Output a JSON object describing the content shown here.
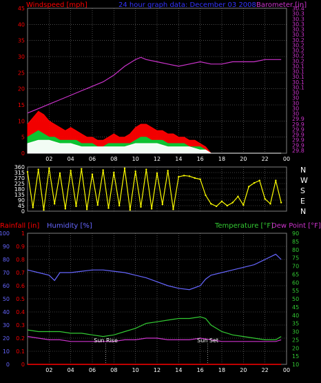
{
  "header": {
    "windspeed_label": "Windspeed [mph]",
    "title": "24 hour graph data: December 03 2008",
    "barometer_label": "Barometer [in]"
  },
  "lower_header": {
    "rainfall_label": "Rainfall [in]",
    "humidity_label": "Humidity [%]",
    "temperature_label": "Temperature [°F]",
    "dewpoint_label": "Dew Point [°F]"
  },
  "annotations": {
    "sunrise": "Sun Rise",
    "sunset": "Sun Set"
  },
  "colors": {
    "background": "#000000",
    "wind_gust": "#ff0000",
    "wind_speed": "#00cc33",
    "wind_avg": "#ffffff",
    "barometer": "#cc33cc",
    "direction": "#ffff00",
    "humidity": "#6666ff",
    "temperature": "#33cc33",
    "dewpoint": "#cc33cc",
    "rainfall": "#ff0000",
    "grid": "#7f7f7f"
  },
  "chart_data": [
    {
      "type": "line",
      "name": "wind-and-barometer",
      "title": "24 hour graph data: December 03 2008",
      "x_ticks": [
        "02",
        "04",
        "06",
        "08",
        "10",
        "12",
        "14",
        "16",
        "18",
        "20",
        "22",
        "00"
      ],
      "left_axis": {
        "label": "Windspeed [mph]",
        "lim": [
          0,
          45
        ],
        "ticks": [
          0,
          5,
          10,
          15,
          20,
          25,
          30,
          35,
          40,
          45
        ]
      },
      "right_axis": {
        "label": "Barometer [in]",
        "lim": [
          29.75,
          30.4
        ],
        "ticks": [
          "29.8",
          "29.9",
          "29.9",
          "29.9",
          "29.9",
          "29.9",
          "29.9",
          "30",
          "30",
          "30",
          "30",
          "30",
          "30.1",
          "30.1",
          "30.1",
          "30.1",
          "30.1",
          "30.2",
          "30.2",
          "30.2",
          "30.2",
          "30.2",
          "30.3",
          "30.3",
          "30.3",
          "30.3",
          "30.3",
          "30.4"
        ]
      },
      "grid": true,
      "series": [
        {
          "name": "Barometer",
          "axis": "right",
          "x": [
            0.0,
            1.0,
            2.0,
            3.0,
            4.0,
            5.0,
            6.0,
            7.0,
            8.0,
            9.0,
            10.0,
            10.5,
            11.0,
            12.0,
            13.0,
            14.0,
            15.0,
            16.0,
            17.0,
            18.0,
            19.0,
            20.0,
            21.0,
            22.0,
            23.0,
            23.5
          ],
          "y": [
            29.93,
            29.95,
            29.97,
            29.99,
            30.01,
            30.03,
            30.05,
            30.07,
            30.1,
            30.14,
            30.17,
            30.18,
            30.17,
            30.16,
            30.15,
            30.14,
            30.15,
            30.16,
            30.15,
            30.15,
            30.16,
            30.16,
            30.16,
            30.17,
            30.17,
            30.17
          ]
        },
        {
          "name": "Gust",
          "axis": "left",
          "x": [
            0.0,
            0.5,
            1.0,
            1.5,
            2.0,
            2.5,
            3.0,
            3.5,
            4.0,
            4.5,
            5.0,
            5.5,
            6.0,
            6.5,
            7.0,
            7.5,
            8.0,
            8.5,
            9.0,
            9.5,
            10.0,
            10.5,
            11.0,
            11.5,
            12.0,
            12.5,
            13.0,
            13.5,
            14.0,
            14.5,
            15.0,
            15.5,
            16.0,
            16.5,
            17.0,
            18.0,
            19.0,
            20.0,
            21.0,
            22.0,
            23.0,
            23.5
          ],
          "y": [
            9,
            11,
            13,
            12,
            10,
            9,
            8,
            7,
            8,
            7,
            6,
            5,
            5,
            4,
            4,
            5,
            6,
            5,
            5,
            6,
            8,
            9,
            9,
            8,
            7,
            7,
            6,
            6,
            5,
            5,
            4,
            4,
            3,
            2,
            0,
            0,
            0,
            0,
            0,
            0,
            0,
            0
          ]
        },
        {
          "name": "Speed",
          "axis": "left",
          "x": [
            0.0,
            0.5,
            1.0,
            1.5,
            2.0,
            2.5,
            3.0,
            3.5,
            4.0,
            4.5,
            5.0,
            5.5,
            6.0,
            6.5,
            7.0,
            7.5,
            8.0,
            8.5,
            9.0,
            9.5,
            10.0,
            10.5,
            11.0,
            11.5,
            12.0,
            12.5,
            13.0,
            13.5,
            14.0,
            14.5,
            15.0,
            15.5,
            16.0,
            16.5,
            17.0,
            18.0,
            23.5
          ],
          "y": [
            5,
            6,
            7,
            6,
            5,
            5,
            4,
            4,
            4,
            4,
            3,
            3,
            3,
            2,
            2,
            3,
            3,
            3,
            3,
            3,
            4,
            5,
            5,
            4,
            4,
            4,
            3,
            3,
            3,
            3,
            2,
            2,
            2,
            1,
            0,
            0,
            0
          ]
        },
        {
          "name": "Average",
          "axis": "left",
          "x": [
            0.0,
            1.0,
            2.0,
            3.0,
            4.0,
            5.0,
            6.0,
            7.0,
            8.0,
            9.0,
            10.0,
            11.0,
            12.0,
            13.0,
            14.0,
            15.0,
            16.0,
            16.5,
            17.0,
            23.5
          ],
          "y": [
            3,
            4,
            4,
            3,
            3,
            2,
            2,
            2,
            2,
            2,
            3,
            3,
            3,
            2,
            2,
            2,
            1,
            1,
            0,
            0
          ]
        }
      ]
    },
    {
      "type": "scatter",
      "name": "wind-direction",
      "x_ticks": [],
      "left_axis": {
        "lim": [
          0,
          360
        ],
        "ticks": [
          0,
          45,
          90,
          135,
          180,
          225,
          270,
          315,
          360
        ]
      },
      "right_labels": [
        "N",
        "W",
        "S",
        "E",
        "N"
      ],
      "grid": true,
      "series": [
        {
          "name": "Direction",
          "x": [
            0.0,
            0.5,
            1.0,
            1.5,
            2.0,
            2.5,
            3.0,
            3.5,
            4.0,
            4.5,
            5.0,
            5.5,
            6.0,
            6.5,
            7.0,
            7.5,
            8.0,
            8.5,
            9.0,
            9.5,
            10.0,
            10.5,
            11.0,
            11.5,
            12.0,
            12.5,
            13.0,
            13.5,
            14.0,
            14.5,
            15.0,
            15.5,
            16.0,
            16.5,
            17.0,
            17.5,
            18.0,
            18.5,
            19.0,
            19.5,
            20.0,
            20.5,
            21.0,
            21.5,
            22.0,
            22.5,
            23.0,
            23.5
          ],
          "y": [
            320,
            30,
            340,
            10,
            350,
            60,
            310,
            20,
            330,
            40,
            345,
            15,
            300,
            50,
            335,
            25,
            315,
            45,
            350,
            10,
            325,
            35,
            340,
            20,
            310,
            55,
            330,
            15,
            280,
            290,
            285,
            270,
            260,
            130,
            60,
            40,
            80,
            45,
            70,
            120,
            50,
            200,
            230,
            250,
            100,
            60,
            250,
            70
          ]
        }
      ]
    },
    {
      "type": "line",
      "name": "rain-humidity-temperature",
      "x_ticks": [
        "02",
        "04",
        "06",
        "08",
        "10",
        "12",
        "14",
        "16",
        "18",
        "20",
        "22",
        "00"
      ],
      "left_axis": {
        "label": "Humidity [%]",
        "lim": [
          0,
          100
        ],
        "ticks": [
          0,
          10,
          20,
          30,
          40,
          50,
          60,
          70,
          80,
          90,
          100
        ]
      },
      "rain_axis": {
        "label": "Rainfall [in]",
        "lim": [
          0,
          1
        ],
        "ticks": [
          0,
          0.1,
          0.2,
          0.3,
          0.4,
          0.5,
          0.6,
          0.7,
          0.8,
          0.9,
          1
        ]
      },
      "right_axis": {
        "label": "Temperature [°F] / Dew Point [°F]",
        "lim": [
          10,
          90
        ],
        "ticks": [
          10,
          15,
          20,
          25,
          30,
          35,
          40,
          45,
          50,
          55,
          60,
          65,
          70,
          75,
          80,
          85,
          90
        ]
      },
      "grid": true,
      "series": [
        {
          "name": "Humidity",
          "axis": "left",
          "x": [
            0.0,
            1.0,
            2.0,
            2.5,
            3.0,
            4.0,
            5.0,
            6.0,
            7.0,
            8.0,
            9.0,
            10.0,
            11.0,
            12.0,
            13.0,
            14.0,
            15.0,
            16.0,
            16.5,
            17.0,
            18.0,
            19.0,
            20.0,
            21.0,
            22.0,
            23.0,
            23.5
          ],
          "y": [
            72,
            70,
            68,
            64,
            70,
            70,
            71,
            72,
            72,
            71,
            70,
            68,
            66,
            63,
            60,
            58,
            57,
            60,
            65,
            68,
            70,
            72,
            74,
            76,
            80,
            84,
            80
          ]
        },
        {
          "name": "Temperature",
          "axis": "right",
          "x": [
            0.0,
            1.0,
            2.0,
            3.0,
            4.0,
            5.0,
            6.0,
            7.0,
            8.0,
            9.0,
            10.0,
            11.0,
            12.0,
            13.0,
            14.0,
            15.0,
            16.0,
            16.5,
            17.0,
            18.0,
            19.0,
            20.0,
            21.0,
            22.0,
            23.0,
            23.5
          ],
          "y": [
            31,
            30,
            30,
            30,
            29,
            29,
            28,
            27,
            28,
            30,
            32,
            35,
            36,
            37,
            38,
            38,
            39,
            38,
            34,
            30,
            28,
            27,
            26,
            25,
            25,
            27
          ]
        },
        {
          "name": "Dew Point",
          "axis": "right",
          "x": [
            0.0,
            1.0,
            2.0,
            3.0,
            4.0,
            5.0,
            6.0,
            7.0,
            8.0,
            9.0,
            10.0,
            11.0,
            12.0,
            13.0,
            14.0,
            15.0,
            16.0,
            17.0,
            18.0,
            19.0,
            20.0,
            21.0,
            22.0,
            23.0,
            23.5
          ],
          "y": [
            27,
            26,
            25,
            25,
            24,
            24,
            24,
            24,
            24,
            25,
            25,
            26,
            26,
            25,
            25,
            25,
            26,
            25,
            24,
            24,
            24,
            24,
            24,
            24,
            25
          ]
        },
        {
          "name": "Rainfall",
          "axis": "rain",
          "x": [
            0.0,
            23.5
          ],
          "y": [
            0.0,
            0.0
          ]
        }
      ],
      "markers": [
        {
          "label": "Sun Rise",
          "x": 7.25
        },
        {
          "label": "Sun Set",
          "x": 16.7
        }
      ]
    }
  ]
}
